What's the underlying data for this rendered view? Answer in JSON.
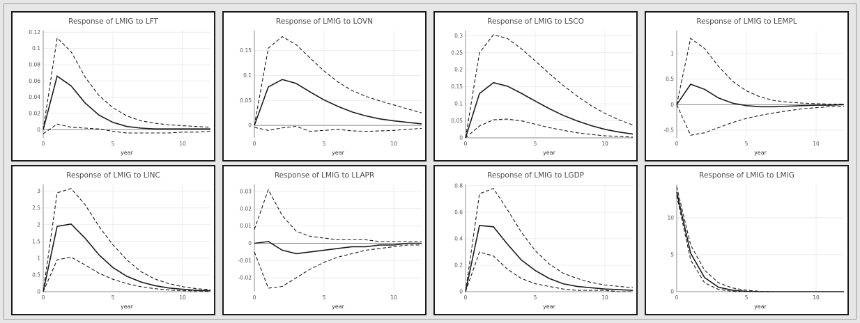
{
  "chart_data": [
    {
      "type": "line",
      "title": "Response of LMIG to LFT",
      "xlabel": "year",
      "ylabel": "",
      "xlim": [
        0,
        12
      ],
      "ylim": [
        -0.01,
        0.122
      ],
      "xticks": [
        0,
        5,
        10
      ],
      "yticks": [
        0,
        0.02,
        0.04,
        0.06,
        0.08,
        0.1,
        0.12
      ],
      "ytick_labels": [
        "0",
        "0.02",
        "0.04",
        "0.06",
        "0.08",
        "0.1",
        "0.12"
      ],
      "x": [
        0,
        1,
        2,
        3,
        4,
        5,
        6,
        7,
        8,
        9,
        10,
        11,
        12
      ],
      "series": [
        {
          "style": "solid",
          "values": [
            0,
            0.066,
            0.054,
            0.033,
            0.018,
            0.009,
            0.004,
            0.002,
            0.001,
            0.001,
            0.001,
            0.001,
            0.001
          ]
        },
        {
          "style": "dashed",
          "values": [
            0,
            0.113,
            0.096,
            0.065,
            0.042,
            0.027,
            0.017,
            0.011,
            0.008,
            0.006,
            0.005,
            0.004,
            0.003
          ]
        },
        {
          "style": "dashed",
          "values": [
            -0.005,
            0.007,
            0.003,
            0.002,
            0.001,
            -0.002,
            -0.004,
            -0.004,
            -0.004,
            -0.004,
            -0.003,
            -0.003,
            -0.002
          ]
        }
      ]
    },
    {
      "type": "line",
      "title": "Response of LMIG to LOVN",
      "xlabel": "year",
      "ylabel": "",
      "xlim": [
        0,
        12
      ],
      "ylim": [
        -0.025,
        0.19
      ],
      "xticks": [
        0,
        5,
        10
      ],
      "yticks": [
        0,
        0.05,
        0.1,
        0.15
      ],
      "ytick_labels": [
        "0",
        "0.05",
        "0.1",
        "0.15"
      ],
      "x": [
        0,
        1,
        2,
        3,
        4,
        5,
        6,
        7,
        8,
        9,
        10,
        11,
        12
      ],
      "series": [
        {
          "style": "solid",
          "values": [
            0,
            0.077,
            0.092,
            0.084,
            0.067,
            0.051,
            0.038,
            0.027,
            0.019,
            0.013,
            0.009,
            0.006,
            0.003
          ]
        },
        {
          "style": "dashed",
          "values": [
            0,
            0.155,
            0.178,
            0.162,
            0.135,
            0.109,
            0.087,
            0.07,
            0.058,
            0.049,
            0.041,
            0.033,
            0.025
          ]
        },
        {
          "style": "dashed",
          "values": [
            -0.004,
            -0.01,
            -0.005,
            -0.002,
            -0.012,
            -0.01,
            -0.008,
            -0.011,
            -0.012,
            -0.011,
            -0.01,
            -0.008,
            -0.006
          ]
        }
      ]
    },
    {
      "type": "line",
      "title": "Response of LMIG to LSCO",
      "xlabel": "year",
      "ylabel": "",
      "xlim": [
        0,
        12
      ],
      "ylim": [
        0,
        0.315
      ],
      "xticks": [
        0,
        5,
        10
      ],
      "yticks": [
        0,
        0.05,
        0.1,
        0.15,
        0.2,
        0.25,
        0.3
      ],
      "ytick_labels": [
        "0",
        "0.05",
        "0.1",
        "0.15",
        "0.2",
        "0.25",
        "0.3"
      ],
      "x": [
        0,
        1,
        2,
        3,
        4,
        5,
        6,
        7,
        8,
        9,
        10,
        11,
        12
      ],
      "series": [
        {
          "style": "solid",
          "values": [
            0,
            0.13,
            0.162,
            0.152,
            0.131,
            0.108,
            0.086,
            0.066,
            0.05,
            0.036,
            0.025,
            0.017,
            0.011
          ]
        },
        {
          "style": "dashed",
          "values": [
            0,
            0.25,
            0.303,
            0.292,
            0.262,
            0.226,
            0.189,
            0.154,
            0.123,
            0.095,
            0.072,
            0.053,
            0.038
          ]
        },
        {
          "style": "dashed",
          "values": [
            0,
            0.035,
            0.053,
            0.055,
            0.05,
            0.04,
            0.03,
            0.022,
            0.015,
            0.01,
            0.006,
            0.004,
            0.002
          ]
        }
      ]
    },
    {
      "type": "line",
      "title": "Response of LMIG to LEMPL",
      "xlabel": "year",
      "ylabel": "",
      "xlim": [
        0,
        12
      ],
      "ylim": [
        -0.65,
        1.45
      ],
      "xticks": [
        0,
        5,
        10
      ],
      "yticks": [
        -0.5,
        0,
        0.5,
        1
      ],
      "ytick_labels": [
        "-0.5",
        "0",
        "0.5",
        "1"
      ],
      "x": [
        0,
        1,
        2,
        3,
        4,
        5,
        6,
        7,
        8,
        9,
        10,
        11,
        12
      ],
      "series": [
        {
          "style": "solid",
          "values": [
            0,
            0.4,
            0.3,
            0.13,
            0.03,
            -0.02,
            -0.04,
            -0.04,
            -0.03,
            -0.02,
            -0.01,
            -0.01,
            0
          ]
        },
        {
          "style": "dashed",
          "values": [
            0,
            1.3,
            1.1,
            0.75,
            0.46,
            0.27,
            0.15,
            0.08,
            0.05,
            0.03,
            0.02,
            0.01,
            0.01
          ]
        },
        {
          "style": "dashed",
          "values": [
            0,
            -0.6,
            -0.55,
            -0.45,
            -0.35,
            -0.27,
            -0.21,
            -0.16,
            -0.12,
            -0.08,
            -0.06,
            -0.04,
            -0.03
          ]
        }
      ]
    },
    {
      "type": "line",
      "title": "Response of LMIG to LINC",
      "xlabel": "year",
      "ylabel": "",
      "xlim": [
        0,
        12
      ],
      "ylim": [
        0,
        3.2
      ],
      "xticks": [
        0,
        5,
        10
      ],
      "yticks": [
        0,
        0.5,
        1,
        1.5,
        2,
        2.5,
        3
      ],
      "ytick_labels": [
        "0",
        "0.5",
        "1",
        "1.5",
        "2",
        "2.5",
        "3"
      ],
      "x": [
        0,
        1,
        2,
        3,
        4,
        5,
        6,
        7,
        8,
        9,
        10,
        11,
        12
      ],
      "series": [
        {
          "style": "solid",
          "values": [
            0,
            1.95,
            2.02,
            1.6,
            1.1,
            0.72,
            0.46,
            0.29,
            0.18,
            0.11,
            0.07,
            0.04,
            0.03
          ]
        },
        {
          "style": "dashed",
          "values": [
            0,
            2.95,
            3.08,
            2.6,
            1.95,
            1.4,
            0.95,
            0.6,
            0.38,
            0.24,
            0.15,
            0.09,
            0.06
          ]
        },
        {
          "style": "dashed",
          "values": [
            0,
            0.95,
            1.03,
            0.8,
            0.55,
            0.37,
            0.24,
            0.15,
            0.09,
            0.05,
            0.03,
            0.02,
            0.01
          ]
        }
      ]
    },
    {
      "type": "line",
      "title": "Response of LMIG to LLAPR",
      "xlabel": "year",
      "ylabel": "",
      "xlim": [
        0,
        12
      ],
      "ylim": [
        -0.028,
        0.034
      ],
      "xticks": [
        0,
        5,
        10
      ],
      "yticks": [
        -0.02,
        -0.01,
        0,
        0.01,
        0.02,
        0.03
      ],
      "ytick_labels": [
        "-0.02",
        "-0.01",
        "0",
        "0.01",
        "0.02",
        "0.03"
      ],
      "x": [
        0,
        1,
        2,
        3,
        4,
        5,
        6,
        7,
        8,
        9,
        10,
        11,
        12
      ],
      "series": [
        {
          "style": "solid",
          "values": [
            0,
            0.001,
            -0.004,
            -0.006,
            -0.005,
            -0.004,
            -0.003,
            -0.002,
            -0.002,
            -0.001,
            -0.001,
            0,
            0
          ]
        },
        {
          "style": "dashed",
          "values": [
            0.008,
            0.031,
            0.016,
            0.007,
            0.004,
            0.003,
            0.002,
            0.002,
            0.002,
            0.001,
            0.001,
            0.001,
            0.001
          ]
        },
        {
          "style": "dashed",
          "values": [
            -0.005,
            -0.026,
            -0.025,
            -0.02,
            -0.015,
            -0.011,
            -0.008,
            -0.006,
            -0.004,
            -0.003,
            -0.002,
            -0.001,
            -0.001
          ]
        }
      ]
    },
    {
      "type": "line",
      "title": "Response of LMIG to LGDP",
      "xlabel": "year",
      "ylabel": "",
      "xlim": [
        0,
        12
      ],
      "ylim": [
        0,
        0.81
      ],
      "xticks": [
        0,
        5,
        10
      ],
      "yticks": [
        0,
        0.2,
        0.4,
        0.6,
        0.8
      ],
      "ytick_labels": [
        "0",
        "0.2",
        "0.4",
        "0.6",
        "0.8"
      ],
      "x": [
        0,
        1,
        2,
        3,
        4,
        5,
        6,
        7,
        8,
        9,
        10,
        11,
        12
      ],
      "series": [
        {
          "style": "solid",
          "values": [
            0,
            0.5,
            0.49,
            0.36,
            0.24,
            0.16,
            0.1,
            0.06,
            0.04,
            0.03,
            0.02,
            0.015,
            0.01
          ]
        },
        {
          "style": "dashed",
          "values": [
            0,
            0.74,
            0.78,
            0.62,
            0.45,
            0.31,
            0.21,
            0.14,
            0.1,
            0.07,
            0.05,
            0.04,
            0.03
          ]
        },
        {
          "style": "dashed",
          "values": [
            0,
            0.3,
            0.27,
            0.17,
            0.1,
            0.06,
            0.04,
            0.02,
            0.01,
            0.01,
            0.01,
            0,
            0
          ]
        }
      ]
    },
    {
      "type": "line",
      "title": "Response of LMIG to LMIG",
      "xlabel": "year",
      "ylabel": "",
      "xlim": [
        0,
        12
      ],
      "ylim": [
        0,
        14.5
      ],
      "xticks": [
        0,
        5,
        10
      ],
      "yticks": [
        0,
        5,
        10
      ],
      "ytick_labels": [
        "0",
        "5",
        "10"
      ],
      "x": [
        0,
        1,
        2,
        3,
        4,
        5,
        6,
        7,
        8,
        9,
        10,
        11,
        12
      ],
      "series": [
        {
          "style": "solid",
          "values": [
            13.5,
            5.2,
            1.9,
            0.6,
            0.2,
            0.05,
            0,
            0,
            0,
            0,
            0,
            0,
            0
          ]
        },
        {
          "style": "dashed",
          "values": [
            14.2,
            6.3,
            2.9,
            1.2,
            0.5,
            0.2,
            0.05,
            0,
            0,
            0,
            0,
            0,
            0
          ]
        },
        {
          "style": "dashed",
          "values": [
            13.0,
            4.3,
            1.2,
            0.3,
            0.05,
            0,
            0,
            0,
            0,
            0,
            0,
            0,
            0
          ]
        }
      ]
    }
  ]
}
